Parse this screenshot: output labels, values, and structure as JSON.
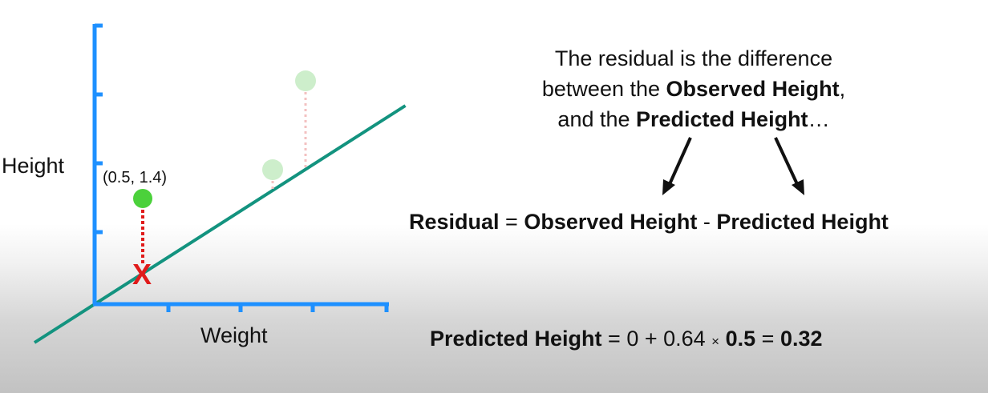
{
  "plot": {
    "y_label": "Height",
    "x_label": "Weight",
    "point_label": "(0.5, 1.4)",
    "colors": {
      "axis": "#1e90ff",
      "regression_line": "#13937f",
      "observed_point": "#4bd13b",
      "faded_point": "#cdeecb",
      "residual_current": "#e01b1b",
      "residual_faded": "#f3c1c1",
      "predicted_marker": "#e01b1b"
    },
    "predicted_marker_glyph": "X"
  },
  "chart_data": {
    "type": "scatter",
    "x_axis_label": "Weight",
    "y_axis_label": "Height",
    "regression_line": {
      "intercept": 0,
      "slope": 0.64
    },
    "points": [
      {
        "x": 0.5,
        "y": 1.4,
        "label": "(0.5, 1.4)",
        "highlighted": true
      },
      {
        "x": 2.0,
        "y": 1.6,
        "highlighted": false
      },
      {
        "x": 2.4,
        "y": 2.6,
        "highlighted": false
      }
    ],
    "predicted_point": {
      "x": 0.5,
      "y": 0.32
    }
  },
  "explanation": {
    "line1": "The residual is the difference",
    "line2_pre": "between the ",
    "line2_bold": "Observed Height",
    "line2_post": ",",
    "line3_pre": "and the ",
    "line3_bold": "Predicted Height",
    "line3_post": "…"
  },
  "residual_formula": {
    "lhs": "Residual",
    "equals": " = ",
    "term1": "Observed Height",
    "minus": " - ",
    "term2": "Predicted Height"
  },
  "predicted_formula": {
    "lhs": "Predicted Height",
    "part1": " = 0 + 0.64 ",
    "times": "×",
    "space": " ",
    "value": "0.5",
    "equals": " = ",
    "result": "0.32"
  }
}
